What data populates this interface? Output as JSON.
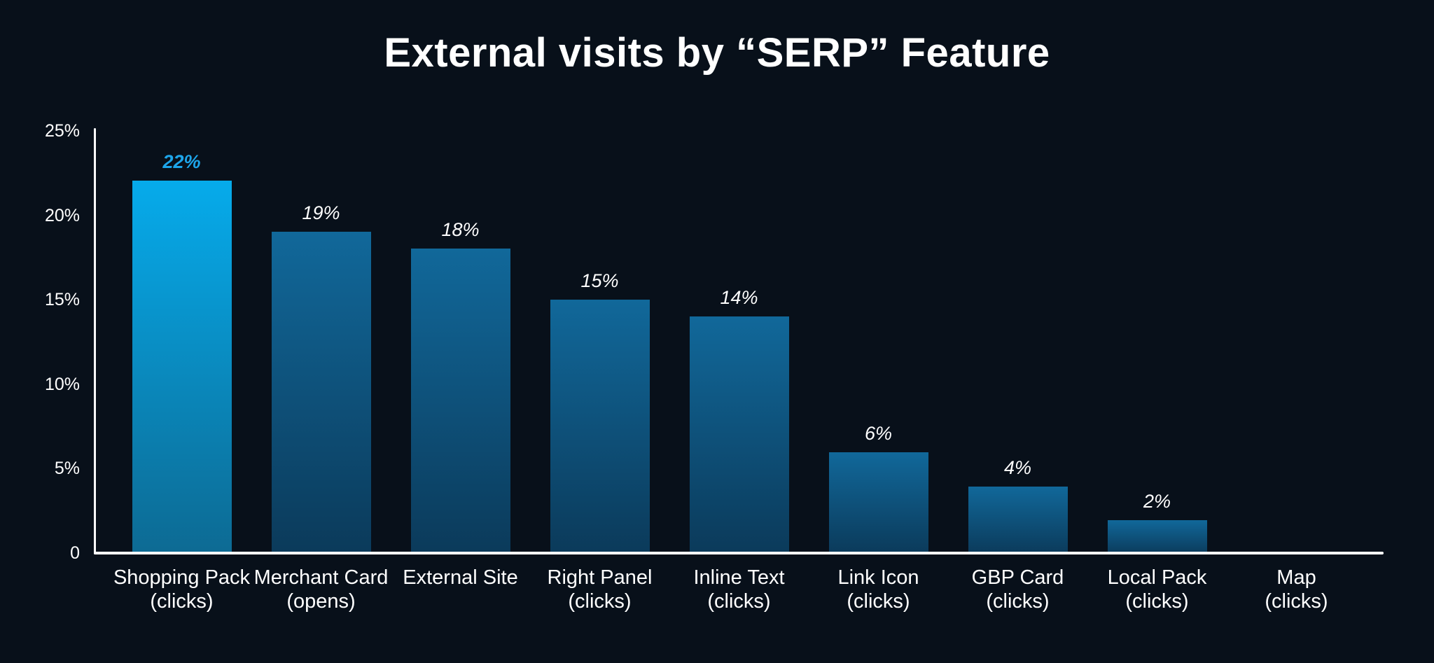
{
  "chart_data": {
    "type": "bar",
    "title": "External visits by “SERP” Feature",
    "xlabel": "",
    "ylabel": "",
    "ylim": [
      0,
      25
    ],
    "grid": false,
    "legend": false,
    "y_ticks": [
      {
        "value": 25,
        "label": "25%"
      },
      {
        "value": 20,
        "label": "20%"
      },
      {
        "value": 15,
        "label": "15%"
      },
      {
        "value": 10,
        "label": "10%"
      },
      {
        "value": 5,
        "label": "5%"
      },
      {
        "value": 0,
        "label": "0"
      }
    ],
    "bars": [
      {
        "category": "Shopping Pack",
        "sublabel": "(clicks)",
        "value": 22,
        "value_label": "22%",
        "highlight": true
      },
      {
        "category": "Merchant Card",
        "sublabel": "(opens)",
        "value": 19,
        "value_label": "19%",
        "highlight": false
      },
      {
        "category": "External Site",
        "sublabel": "",
        "value": 18,
        "value_label": "18%",
        "highlight": false
      },
      {
        "category": "Right Panel",
        "sublabel": "(clicks)",
        "value": 15,
        "value_label": "15%",
        "highlight": false
      },
      {
        "category": "Inline Text",
        "sublabel": "(clicks)",
        "value": 14,
        "value_label": "14%",
        "highlight": false
      },
      {
        "category": "Link Icon",
        "sublabel": "(clicks)",
        "value": 6,
        "value_label": "6%",
        "highlight": false
      },
      {
        "category": "GBP Card",
        "sublabel": "(clicks)",
        "value": 4,
        "value_label": "4%",
        "highlight": false
      },
      {
        "category": "Local Pack",
        "sublabel": "(clicks)",
        "value": 2,
        "value_label": "2%",
        "highlight": false
      },
      {
        "category": "Map",
        "sublabel": "(clicks)",
        "value": 0,
        "value_label": "",
        "highlight": false
      }
    ]
  },
  "colors": {
    "background": "#08101a",
    "axis": "#ffffff",
    "text": "#ffffff",
    "highlight_value_label": "#1da5ea",
    "highlight_bar_top": "#06abeb",
    "highlight_bar_bottom": "#0d6a93",
    "bar_top": "#11689a",
    "bar_bottom": "#0b3a5a"
  }
}
